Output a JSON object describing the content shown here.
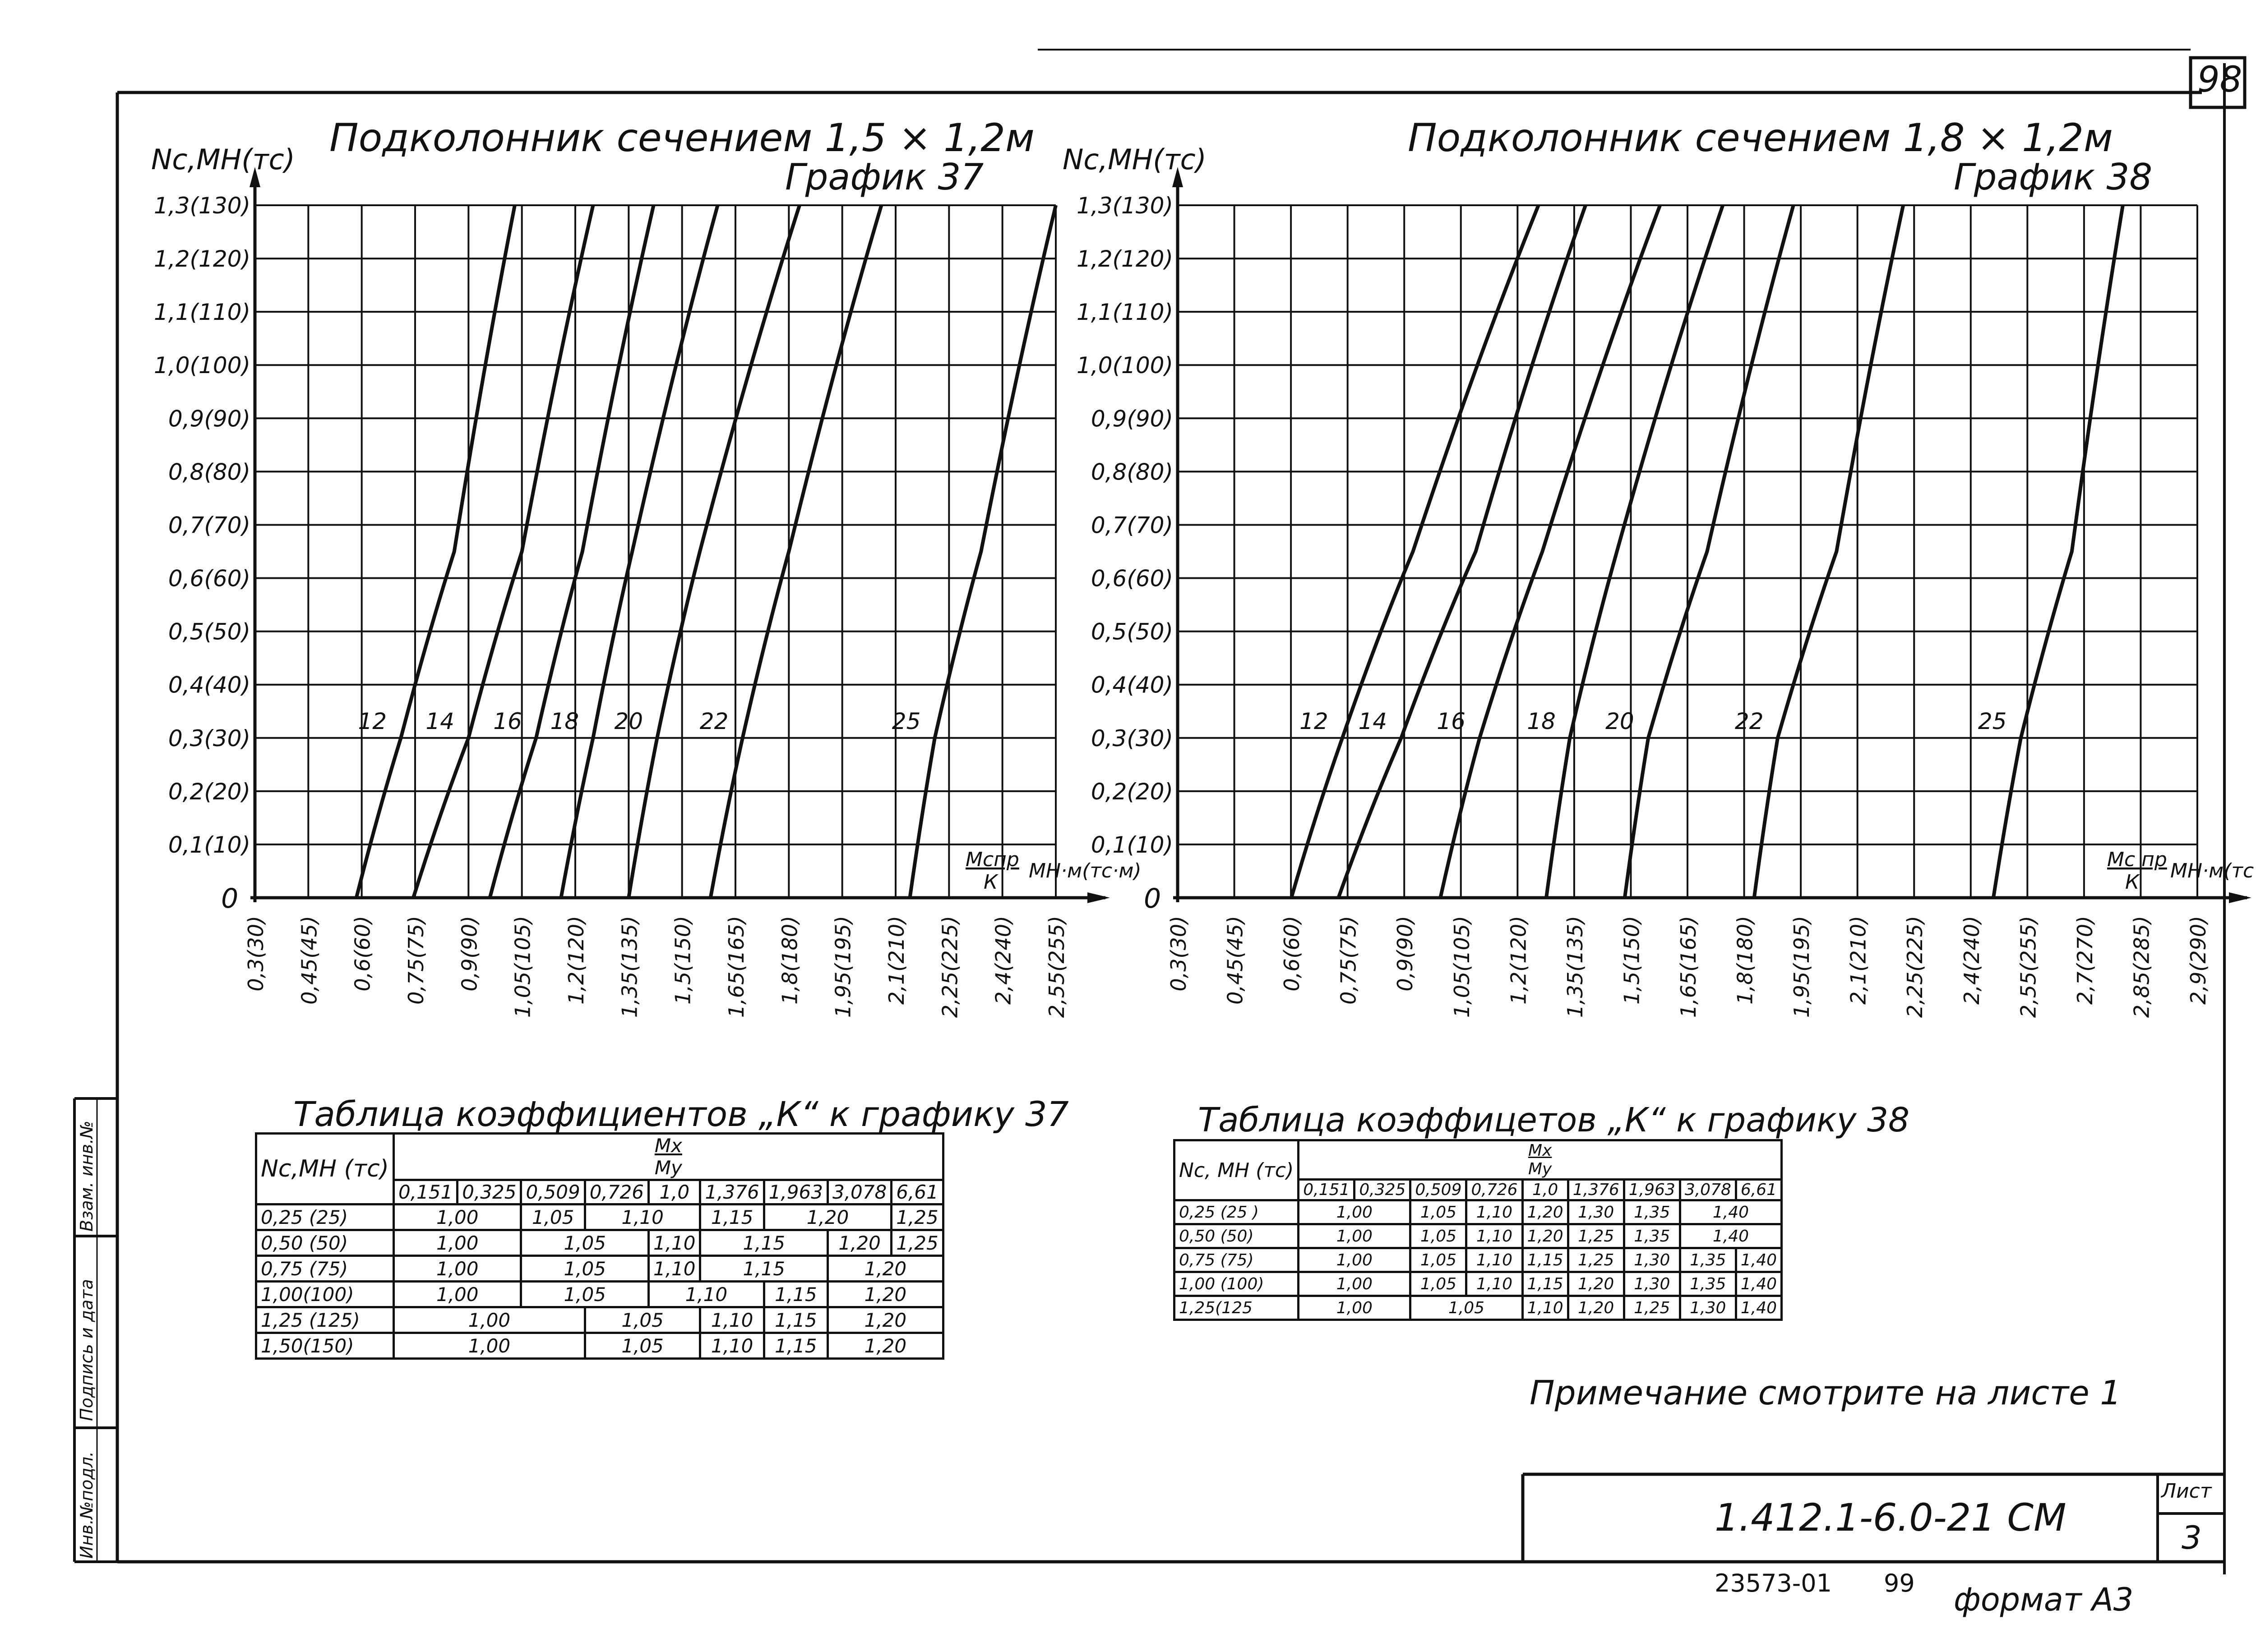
{
  "sheet": {
    "page_number": "98",
    "doc_code": "1.412.1-6.0-21 СМ",
    "sheet_label": "Лист",
    "sheet_number": "3",
    "archive_number": "23573-01",
    "archive_page": "99",
    "format": "формат А3",
    "note": "Примечание  смотрите на листе 1",
    "stamps": [
      "Инв.№подл.",
      "Подпись и дата",
      "Взам. инв.№"
    ]
  },
  "charts": [
    {
      "title": "Подколонник сечением 1,5 × 1,2м",
      "subtitle": "График 37",
      "y_label": "Nс,МН(тс)",
      "x_label_num": "Мспр",
      "x_label_den": "К",
      "x_label_unit": "МН·м(тс·м)",
      "origin_label": "0",
      "y_ticks": [
        "0,1(10)",
        "0,2(20)",
        "0,3(30)",
        "0,4(40)",
        "0,5(50)",
        "0,6(60)",
        "0,7(70)",
        "0,8(80)",
        "0,9(90)",
        "1,0(100)",
        "1,1(110)",
        "1,2(120)",
        "1,3(130)"
      ],
      "x_ticks": [
        "0,3(30)",
        "0,45(45)",
        "0,6(60)",
        "0,75(75)",
        "0,9(90)",
        "1,05(105)",
        "1,2(120)",
        "1,35(135)",
        "1,5(150)",
        "1,65(165)",
        "1,8(180)",
        "1,95(195)",
        "2,1(210)",
        "2,25(225)",
        "2,4(240)",
        "2,55(255)"
      ]
    },
    {
      "title": "Подколонник сечением 1,8 × 1,2м",
      "subtitle": "График 38",
      "y_label": "Nс,МН(тс)",
      "x_label_num": "Мс пр",
      "x_label_den": "К",
      "x_label_unit": "МН·м(тс·м)",
      "origin_label": "0",
      "y_ticks": [
        "0,1(10)",
        "0,2(20)",
        "0,3(30)",
        "0,4(40)",
        "0,5(50)",
        "0,6(60)",
        "0,7(70)",
        "0,8(80)",
        "0,9(90)",
        "1,0(100)",
        "1,1(110)",
        "1,2(120)",
        "1,3(130)"
      ],
      "x_ticks": [
        "0,3(30)",
        "0,45(45)",
        "0,6(60)",
        "0,75(75)",
        "0,9(90)",
        "1,05(105)",
        "1,2(120)",
        "1,35(135)",
        "1,5(150)",
        "1,65(165)",
        "1,8(180)",
        "1,95(195)",
        "2,1(210)",
        "2,25(225)",
        "2,4(240)",
        "2,55(255)",
        "2,7(270)",
        "2,85(285)",
        "2,9(290)"
      ]
    }
  ],
  "chart_data": [
    {
      "type": "line",
      "title": "Подколонник сечением 1,5 × 1,2м",
      "xlabel": "Мспр/К, МН·м(тс·м)",
      "ylabel": "Nс,МН(тс)",
      "xlim": [
        0.3,
        2.55
      ],
      "ylim": [
        0,
        1.3
      ],
      "grid": true,
      "series": [
        {
          "name": "12",
          "x": [
            0.585,
            0.71,
            0.86,
            1.03
          ],
          "y": [
            0,
            0.3,
            0.65,
            1.3
          ]
        },
        {
          "name": "14",
          "x": [
            0.745,
            0.9,
            1.05,
            1.25
          ],
          "y": [
            0,
            0.3,
            0.65,
            1.3
          ]
        },
        {
          "name": "16",
          "x": [
            0.96,
            1.09,
            1.22,
            1.42
          ],
          "y": [
            0,
            0.3,
            0.65,
            1.3
          ]
        },
        {
          "name": "18",
          "x": [
            1.16,
            1.25,
            1.36,
            1.6
          ],
          "y": [
            0,
            0.3,
            0.65,
            1.3
          ]
        },
        {
          "name": "20",
          "x": [
            1.35,
            1.43,
            1.55,
            1.83
          ],
          "y": [
            0,
            0.3,
            0.65,
            1.3
          ]
        },
        {
          "name": "22",
          "x": [
            1.58,
            1.67,
            1.8,
            2.06
          ],
          "y": [
            0,
            0.3,
            0.65,
            1.3
          ]
        },
        {
          "name": "25",
          "x": [
            2.14,
            2.21,
            2.34,
            2.55
          ],
          "y": [
            0,
            0.3,
            0.65,
            1.3
          ]
        }
      ]
    },
    {
      "type": "line",
      "title": "Подколонник сечением 1,8 × 1,2м",
      "xlabel": "Мс пр/К, МН·м(тс·м)",
      "ylabel": "Nс,МН(тс)",
      "xlim": [
        0.3,
        2.9
      ],
      "ylim": [
        0,
        1.3
      ],
      "grid": true,
      "series": [
        {
          "name": "12",
          "x": [
            0.59,
            0.72,
            0.9,
            1.22
          ],
          "y": [
            0,
            0.3,
            0.65,
            1.3
          ]
        },
        {
          "name": "14",
          "x": [
            0.71,
            0.87,
            1.06,
            1.34
          ],
          "y": [
            0,
            0.3,
            0.65,
            1.3
          ]
        },
        {
          "name": "16",
          "x": [
            0.97,
            1.07,
            1.23,
            1.53
          ],
          "y": [
            0,
            0.3,
            0.65,
            1.3
          ]
        },
        {
          "name": "18",
          "x": [
            1.24,
            1.3,
            1.42,
            1.69
          ],
          "y": [
            0,
            0.3,
            0.65,
            1.3
          ]
        },
        {
          "name": "20",
          "x": [
            1.44,
            1.5,
            1.65,
            1.87
          ],
          "y": [
            0,
            0.3,
            0.65,
            1.3
          ]
        },
        {
          "name": "22",
          "x": [
            1.77,
            1.83,
            1.98,
            2.15
          ],
          "y": [
            0,
            0.3,
            0.65,
            1.3
          ]
        },
        {
          "name": "25",
          "x": [
            2.38,
            2.45,
            2.58,
            2.71
          ],
          "y": [
            0,
            0.3,
            0.65,
            1.3
          ]
        }
      ]
    }
  ],
  "tables": [
    {
      "caption": "Таблица коэффициентов „К“ к графику 37",
      "row_header": "Nс,МН (тс)",
      "col_group_num": "Мх",
      "col_group_den": "Му",
      "cols": [
        "0,151",
        "0,325",
        "0,509",
        "0,726",
        "1,0",
        "1,376",
        "1,963",
        "3,078",
        "6,61"
      ],
      "rows": [
        {
          "label": "0,25 (25)",
          "cells": [
            [
              "1,00",
              2
            ],
            [
              "1,05",
              1
            ],
            [
              "1,10",
              2
            ],
            [
              "1,15",
              1
            ],
            [
              "1,20",
              2
            ],
            [
              "1,25",
              1
            ]
          ]
        },
        {
          "label": "0,50 (50)",
          "cells": [
            [
              "1,00",
              2
            ],
            [
              "1,05",
              2
            ],
            [
              "1,10",
              1
            ],
            [
              "1,15",
              2
            ],
            [
              "1,20",
              1
            ],
            [
              "1,25",
              1
            ]
          ]
        },
        {
          "label": "0,75 (75)",
          "cells": [
            [
              "1,00",
              2
            ],
            [
              "1,05",
              2
            ],
            [
              "1,10",
              1
            ],
            [
              "1,15",
              2
            ],
            [
              "1,20",
              2
            ]
          ]
        },
        {
          "label": "1,00(100)",
          "cells": [
            [
              "1,00",
              2
            ],
            [
              "1,05",
              2
            ],
            [
              "1,10",
              2
            ],
            [
              "1,15",
              1
            ],
            [
              "1,20",
              2
            ]
          ]
        },
        {
          "label": "1,25 (125)",
          "cells": [
            [
              "1,00",
              3
            ],
            [
              "1,05",
              2
            ],
            [
              "1,10",
              1
            ],
            [
              "1,15",
              1
            ],
            [
              "1,20",
              2
            ]
          ]
        },
        {
          "label": "1,50(150)",
          "cells": [
            [
              "1,00",
              3
            ],
            [
              "1,05",
              2
            ],
            [
              "1,10",
              1
            ],
            [
              "1,15",
              1
            ],
            [
              "1,20",
              2
            ]
          ]
        }
      ]
    },
    {
      "caption": "Таблица коэффицетов „К“ к графику 38",
      "row_header": "Nс, МН (тс)",
      "col_group_num": "Мх",
      "col_group_den": "Му",
      "cols": [
        "0,151",
        "0,325",
        "0,509",
        "0,726",
        "1,0",
        "1,376",
        "1,963",
        "3,078",
        "6,61"
      ],
      "rows": [
        {
          "label": "0,25 (25 )",
          "cells": [
            [
              "1,00",
              2
            ],
            [
              "1,05",
              1
            ],
            [
              "1,10",
              1
            ],
            [
              "1,20",
              1
            ],
            [
              "1,30",
              1
            ],
            [
              "1,35",
              1
            ],
            [
              "1,40",
              2
            ]
          ]
        },
        {
          "label": "0,50 (50)",
          "cells": [
            [
              "1,00",
              2
            ],
            [
              "1,05",
              1
            ],
            [
              "1,10",
              1
            ],
            [
              "1,20",
              1
            ],
            [
              "1,25",
              1
            ],
            [
              "1,35",
              1
            ],
            [
              "1,40",
              2
            ]
          ]
        },
        {
          "label": "0,75 (75)",
          "cells": [
            [
              "1,00",
              2
            ],
            [
              "1,05",
              1
            ],
            [
              "1,10",
              1
            ],
            [
              "1,15",
              1
            ],
            [
              "1,25",
              1
            ],
            [
              "1,30",
              1
            ],
            [
              "1,35",
              1
            ],
            [
              "1,40",
              1
            ]
          ]
        },
        {
          "label": "1,00 (100)",
          "cells": [
            [
              "1,00",
              2
            ],
            [
              "1,05",
              1
            ],
            [
              "1,10",
              1
            ],
            [
              "1,15",
              1
            ],
            [
              "1,20",
              1
            ],
            [
              "1,30",
              1
            ],
            [
              "1,35",
              1
            ],
            [
              "1,40",
              1
            ]
          ]
        },
        {
          "label": "1,25(125",
          "cells": [
            [
              "1,00",
              2
            ],
            [
              "1,05",
              2
            ],
            [
              "1,10",
              1
            ],
            [
              "1,20",
              1
            ],
            [
              "1,25",
              1
            ],
            [
              "1,30",
              1
            ],
            [
              "1,40",
              1
            ]
          ]
        }
      ]
    }
  ]
}
